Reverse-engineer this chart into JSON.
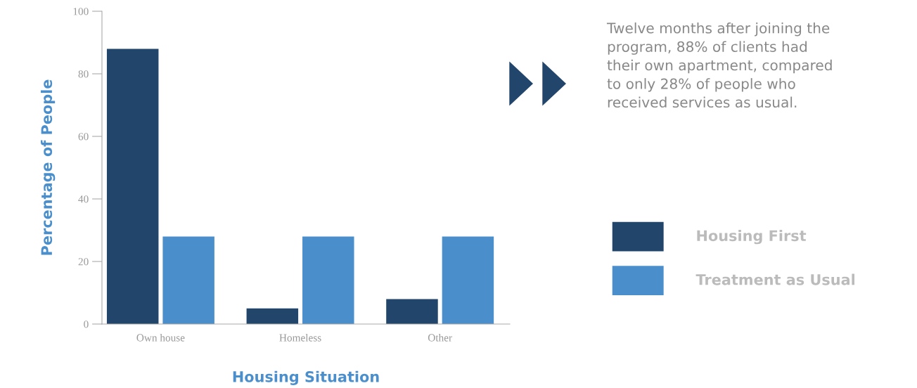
{
  "chart_data": {
    "type": "bar",
    "xlabel": "Housing Situation",
    "ylabel": "Percentage of People",
    "categories": [
      "Own house",
      "Homeless",
      "Other"
    ],
    "series": [
      {
        "name": "Housing First",
        "color": "#22466b",
        "values": [
          88,
          5,
          8
        ]
      },
      {
        "name": "Treatment as Usual",
        "color": "#4a8fcc",
        "values": [
          28,
          28,
          28
        ]
      }
    ],
    "ylim": [
      0,
      100
    ],
    "yticks": [
      0,
      20,
      40,
      60,
      80,
      100
    ],
    "grid": false,
    "legend": "right",
    "annotations": [
      "Twelve months after joining the\nprogram, 88% of clients had\ntheir own apartment, compared\nto only 28% of people who\nreceived services as usual."
    ]
  }
}
